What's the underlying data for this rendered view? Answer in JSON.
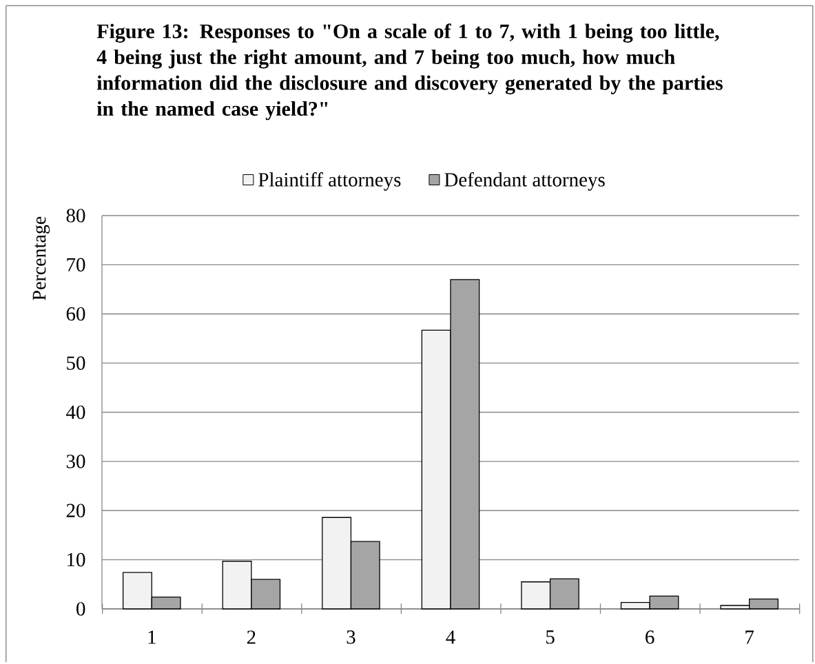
{
  "chart_data": {
    "type": "bar",
    "title": "Figure 13: Responses to \"On a scale of 1 to 7, with 1 being too little, 4 being just the right amount, and 7 being too much, how much information did the disclosure and discovery generated by the parties in the named case yield?\"",
    "ylabel": "Percentage",
    "categories": [
      "1",
      "2",
      "3",
      "4",
      "5",
      "6",
      "7"
    ],
    "series": [
      {
        "name": "Plaintiff attorneys",
        "color": "#f2f2f2",
        "values": [
          7.4,
          9.7,
          18.6,
          56.7,
          5.5,
          1.3,
          0.7
        ]
      },
      {
        "name": "Defendant attorneys",
        "color": "#a5a5a5",
        "values": [
          2.4,
          6.0,
          13.7,
          67.0,
          6.1,
          2.6,
          2.0
        ]
      }
    ],
    "ylim": [
      0,
      80
    ],
    "yticks": [
      0,
      10,
      20,
      30,
      40,
      50,
      60,
      70,
      80
    ],
    "grid": "y",
    "legend": "top"
  }
}
